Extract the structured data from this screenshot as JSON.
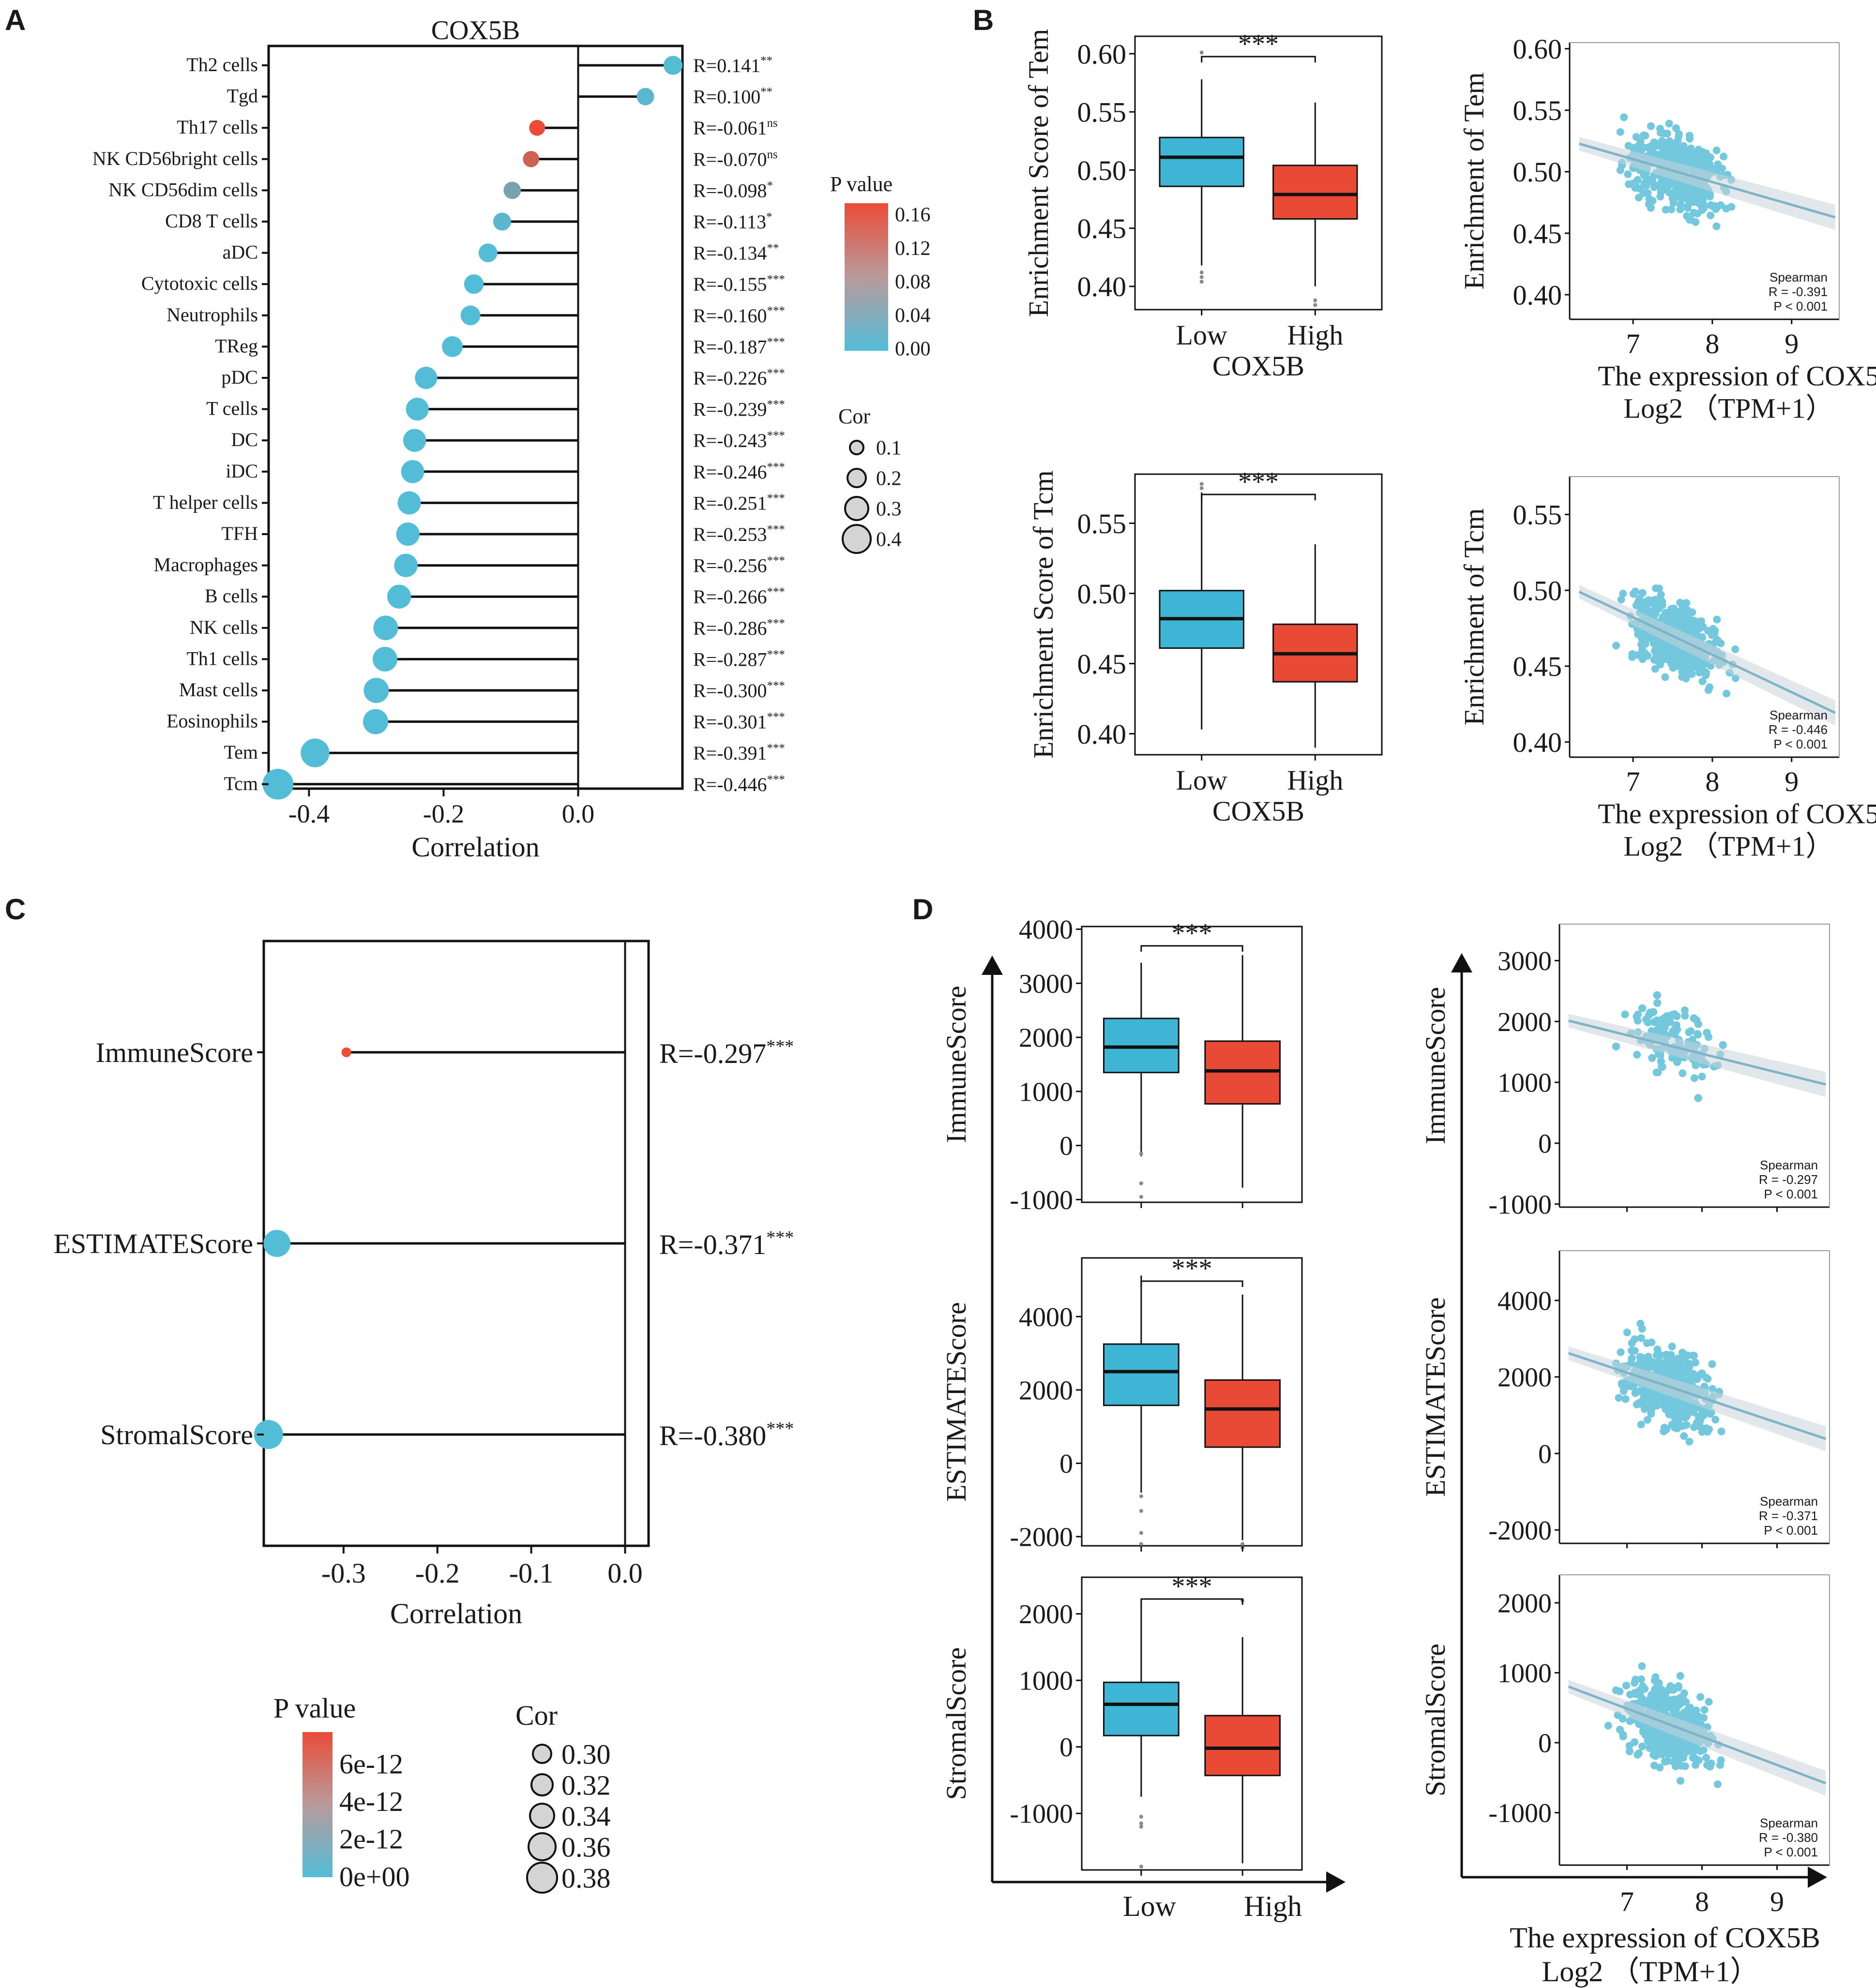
{
  "panel_labels": [
    "A",
    "B",
    "C",
    "D"
  ],
  "colors": {
    "low_box": "#3fb5d6",
    "high_box": "#e94a35",
    "p_low": "#53bdd8",
    "p_high": "#ea4c38",
    "point": "#55bdd6",
    "fit_line": "#7fb3c8"
  },
  "chart_data": [
    {
      "id": "A",
      "type": "lollipop",
      "title": "COX5B",
      "xlabel": "Correlation",
      "xlim": [
        -0.46,
        0.155
      ],
      "xticks": [
        -0.4,
        -0.2,
        0.0
      ],
      "xtick_labels": [
        "-0.4",
        "-0.2",
        "0.0"
      ],
      "categories": [
        "Th2 cells",
        "Tgd",
        "Th17 cells",
        "NK CD56bright cells",
        "NK CD56dim cells",
        "CD8 T cells",
        "aDC",
        "Cytotoxic cells",
        "Neutrophils",
        "TReg",
        "pDC",
        "T cells",
        "DC",
        "iDC",
        "T helper cells",
        "TFH",
        "Macrophages",
        "B cells",
        "NK cells",
        "Th1 cells",
        "Mast cells",
        "Eosinophils",
        "Tem",
        "Tcm"
      ],
      "values": [
        0.141,
        0.1,
        -0.061,
        -0.07,
        -0.098,
        -0.113,
        -0.134,
        -0.155,
        -0.16,
        -0.187,
        -0.226,
        -0.239,
        -0.243,
        -0.246,
        -0.251,
        -0.253,
        -0.256,
        -0.266,
        -0.286,
        -0.287,
        -0.3,
        -0.301,
        -0.391,
        -0.446
      ],
      "pvalues": [
        0.002,
        0.008,
        0.16,
        0.13,
        0.04,
        0.01,
        0.002,
        0.0005,
        0.0004,
        0.0001,
        1e-05,
        1e-05,
        1e-05,
        1e-05,
        1e-05,
        1e-05,
        1e-05,
        1e-05,
        1e-05,
        1e-05,
        1e-05,
        1e-05,
        1e-05,
        1e-05
      ],
      "r_labels": [
        "R=0.141",
        "R=0.100",
        "R=-0.061",
        "R=-0.070",
        "R=-0.098",
        "R=-0.113",
        "R=-0.134",
        "R=-0.155",
        "R=-0.160",
        "R=-0.187",
        "R=-0.226",
        "R=-0.239",
        "R=-0.243",
        "R=-0.246",
        "R=-0.251",
        "R=-0.253",
        "R=-0.256",
        "R=-0.266",
        "R=-0.286",
        "R=-0.287",
        "R=-0.300",
        "R=-0.301",
        "R=-0.391",
        "R=-0.446"
      ],
      "sig": [
        "**",
        "**",
        "ns",
        "ns",
        "*",
        "*",
        "**",
        "***",
        "***",
        "***",
        "***",
        "***",
        "***",
        "***",
        "***",
        "***",
        "***",
        "***",
        "***",
        "***",
        "***",
        "***",
        "***",
        "***"
      ],
      "legend_p": {
        "title": "P value",
        "range": [
          0,
          0.16
        ],
        "ticks": [
          "0.16",
          "0.12",
          "0.08",
          "0.04",
          "0.00"
        ]
      },
      "legend_cor": {
        "title": "Cor",
        "values": [
          0.1,
          0.2,
          0.3,
          0.4
        ],
        "labels": [
          "0.1",
          "0.2",
          "0.3",
          "0.4"
        ]
      }
    },
    {
      "id": "B1",
      "type": "boxplot",
      "ylabel": "Enrichment Score  of Tem",
      "xlabel": "COX5B",
      "categories": [
        "Low",
        "High"
      ],
      "ylim": [
        0.38,
        0.615
      ],
      "yticks": [
        0.4,
        0.45,
        0.5,
        0.55,
        0.6
      ],
      "ytick_labels": [
        "0.40",
        "0.45",
        "0.50",
        "0.55",
        "0.60"
      ],
      "boxes": [
        {
          "min": 0.418,
          "q1": 0.486,
          "median": 0.511,
          "q3": 0.528,
          "max": 0.578,
          "outliers": [
            0.601,
            0.412,
            0.408,
            0.404
          ]
        },
        {
          "min": 0.4,
          "q1": 0.458,
          "median": 0.479,
          "q3": 0.504,
          "max": 0.558,
          "outliers": [
            0.388,
            0.384
          ]
        }
      ],
      "significance": "***"
    },
    {
      "id": "B2",
      "type": "scatter",
      "ylabel": "Enrichment of Tem",
      "xlabel_lines": [
        "The expression of COX5B",
        "Log2 （TPM+1）"
      ],
      "xlim": [
        6.2,
        9.6
      ],
      "ylim": [
        0.38,
        0.605
      ],
      "xticks": [
        7,
        8,
        9
      ],
      "xtick_labels": [
        "7",
        "8",
        "9"
      ],
      "yticks": [
        0.4,
        0.45,
        0.5,
        0.55,
        0.6
      ],
      "ytick_labels": [
        "0.40",
        "0.45",
        "0.50",
        "0.55",
        "0.60"
      ],
      "fit": {
        "x0": 6.2,
        "y0": 0.525,
        "x1": 9.6,
        "y1": 0.462
      },
      "n_points": 460,
      "annotation": [
        "Spearman",
        "R = -0.391",
        "P < 0.001"
      ]
    },
    {
      "id": "B3",
      "type": "boxplot",
      "ylabel": "Enrichment Score of Tcm",
      "xlabel": "COX5B",
      "categories": [
        "Low",
        "High"
      ],
      "ylim": [
        0.385,
        0.585
      ],
      "yticks": [
        0.4,
        0.45,
        0.5,
        0.55
      ],
      "ytick_labels": [
        "0.40",
        "0.45",
        "0.50",
        "0.55"
      ],
      "boxes": [
        {
          "min": 0.403,
          "q1": 0.461,
          "median": 0.482,
          "q3": 0.502,
          "max": 0.572,
          "outliers": [
            0.575,
            0.578
          ]
        },
        {
          "min": 0.39,
          "q1": 0.437,
          "median": 0.457,
          "q3": 0.478,
          "max": 0.535,
          "outliers": []
        }
      ],
      "significance": "***"
    },
    {
      "id": "B4",
      "type": "scatter",
      "ylabel": "Enrichment of Tcm",
      "xlabel_lines": [
        "The expression of COX5B",
        "Log2 （TPM+1）"
      ],
      "xlim": [
        6.2,
        9.6
      ],
      "ylim": [
        0.39,
        0.575
      ],
      "xticks": [
        7,
        8,
        9
      ],
      "xtick_labels": [
        "7",
        "8",
        "9"
      ],
      "yticks": [
        0.4,
        0.45,
        0.5,
        0.55
      ],
      "ytick_labels": [
        "0.40",
        "0.45",
        "0.50",
        "0.55"
      ],
      "fit": {
        "x0": 6.2,
        "y0": 0.502,
        "x1": 9.6,
        "y1": 0.418
      },
      "n_points": 460,
      "annotation": [
        "Spearman",
        "R = -0.446",
        "P < 0.001"
      ]
    },
    {
      "id": "C",
      "type": "lollipop",
      "title": "",
      "xlabel": "Correlation",
      "xlim": [
        -0.385,
        0.025
      ],
      "xticks": [
        -0.3,
        -0.2,
        -0.1,
        0.0
      ],
      "xtick_labels": [
        "-0.3",
        "-0.2",
        "-0.1",
        "0.0"
      ],
      "categories": [
        "ImmuneScore",
        "ESTIMATEScore",
        "StromalScore"
      ],
      "values": [
        -0.297,
        -0.371,
        -0.38
      ],
      "pvalues": [
        7e-12,
        1e-20,
        1e-21
      ],
      "r_labels": [
        "R=-0.297",
        "R=-0.371",
        "R=-0.380"
      ],
      "sig": [
        "***",
        "***",
        "***"
      ],
      "legend_p": {
        "title": "P value",
        "range": [
          0,
          7e-12
        ],
        "ticks": [
          "6e-12",
          "4e-12",
          "2e-12",
          "0e+00"
        ]
      },
      "legend_cor": {
        "title": "Cor",
        "values": [
          0.3,
          0.32,
          0.34,
          0.36,
          0.38
        ],
        "labels": [
          "0.30",
          "0.32",
          "0.34",
          "0.36",
          "0.38"
        ]
      }
    },
    {
      "id": "D1",
      "type": "boxplot",
      "ylabel": "ImmuneScore",
      "categories": [
        "Low",
        "High"
      ],
      "ylim": [
        -1050,
        4050
      ],
      "yticks": [
        -1000,
        0,
        1000,
        2000,
        3000,
        4000
      ],
      "ytick_labels": [
        "-1000",
        "0",
        "1000",
        "2000",
        "3000",
        "4000"
      ],
      "boxes": [
        {
          "min": -200,
          "q1": 1350,
          "median": 1820,
          "q3": 2350,
          "max": 3380,
          "outliers": [
            -150,
            -700,
            -950
          ]
        },
        {
          "min": -780,
          "q1": 770,
          "median": 1380,
          "q3": 1930,
          "max": 3520,
          "outliers": []
        }
      ],
      "significance": "***"
    },
    {
      "id": "D2",
      "type": "scatter",
      "ylabel": "ImmuneScore",
      "xlim": [
        6.1,
        9.7
      ],
      "ylim": [
        -1050,
        3600
      ],
      "xticks": [
        7,
        8,
        9
      ],
      "xtick_labels": [
        "7",
        "8",
        "9"
      ],
      "yticks": [
        -1000,
        0,
        1000,
        2000,
        3000
      ],
      "ytick_labels": [
        "-1000",
        "0",
        "1000",
        "2000",
        "3000"
      ],
      "fit": {
        "x0": 6.1,
        "y0": 2050,
        "x1": 9.7,
        "y1": 950
      },
      "n_points": 460,
      "annotation": [
        "Spearman",
        "R = -0.297",
        "P < 0.001"
      ]
    },
    {
      "id": "D3",
      "type": "boxplot",
      "ylabel": "ESTIMATEScore",
      "categories": [
        "Low",
        "High"
      ],
      "ylim": [
        -2250,
        5600
      ],
      "yticks": [
        -2000,
        0,
        2000,
        4000
      ],
      "ytick_labels": [
        "-2000",
        "0",
        "2000",
        "4000"
      ],
      "boxes": [
        {
          "min": -800,
          "q1": 1580,
          "median": 2500,
          "q3": 3250,
          "max": 5120,
          "outliers": [
            -900,
            -1300,
            -1900,
            -2200
          ]
        },
        {
          "min": -2100,
          "q1": 440,
          "median": 1480,
          "q3": 2270,
          "max": 4600,
          "outliers": [
            -2200,
            -2300
          ]
        }
      ],
      "significance": "***"
    },
    {
      "id": "D4",
      "type": "scatter",
      "ylabel": "ESTIMATEScore",
      "xlim": [
        6.1,
        9.7
      ],
      "ylim": [
        -2350,
        5300
      ],
      "xticks": [
        7,
        8,
        9
      ],
      "xtick_labels": [
        "7",
        "8",
        "9"
      ],
      "yticks": [
        -2000,
        0,
        2000,
        4000
      ],
      "ytick_labels": [
        "-2000",
        "0",
        "2000",
        "4000"
      ],
      "fit": {
        "x0": 6.1,
        "y0": 2700,
        "x1": 9.7,
        "y1": 350
      },
      "n_points": 460,
      "annotation": [
        "Spearman",
        "R = -0.371",
        "P < 0.001"
      ]
    },
    {
      "id": "D5",
      "type": "boxplot",
      "ylabel": "StromalScore",
      "categories": [
        "Low",
        "High"
      ],
      "ylim": [
        -1850,
        2550
      ],
      "yticks": [
        -1000,
        0,
        1000,
        2000
      ],
      "ytick_labels": [
        "-1000",
        "0",
        "1000",
        "2000"
      ],
      "boxes": [
        {
          "min": -750,
          "q1": 170,
          "median": 640,
          "q3": 970,
          "max": 2150,
          "outliers": [
            -1050,
            -1150,
            -1200,
            -1800
          ]
        },
        {
          "min": -1750,
          "q1": -430,
          "median": -20,
          "q3": 470,
          "max": 1650,
          "outliers": [
            2200
          ]
        }
      ],
      "significance": "***"
    },
    {
      "id": "D6",
      "type": "scatter",
      "ylabel": "StromalScore",
      "xlabel_lines": [
        "The expression of COX5B",
        "Log2 （TPM+1）"
      ],
      "xlim": [
        6.1,
        9.7
      ],
      "ylim": [
        -1750,
        2400
      ],
      "xticks": [
        7,
        8,
        9
      ],
      "xtick_labels": [
        "7",
        "8",
        "9"
      ],
      "yticks": [
        -1000,
        0,
        1000,
        2000
      ],
      "ytick_labels": [
        "-1000",
        "0",
        "1000",
        "2000"
      ],
      "fit": {
        "x0": 6.1,
        "y0": 850,
        "x1": 9.7,
        "y1": -600
      },
      "n_points": 460,
      "annotation": [
        "Spearman",
        "R = -0.380",
        "P < 0.001"
      ]
    },
    {
      "id": "D_axes",
      "type": "axis-arrows",
      "categories": [
        "Low",
        "High"
      ],
      "xlabel_lines": [
        "The expression of COX5B",
        "Log2 （TPM+1）"
      ],
      "xtick_labels": [
        "7",
        "8",
        "9"
      ]
    }
  ]
}
